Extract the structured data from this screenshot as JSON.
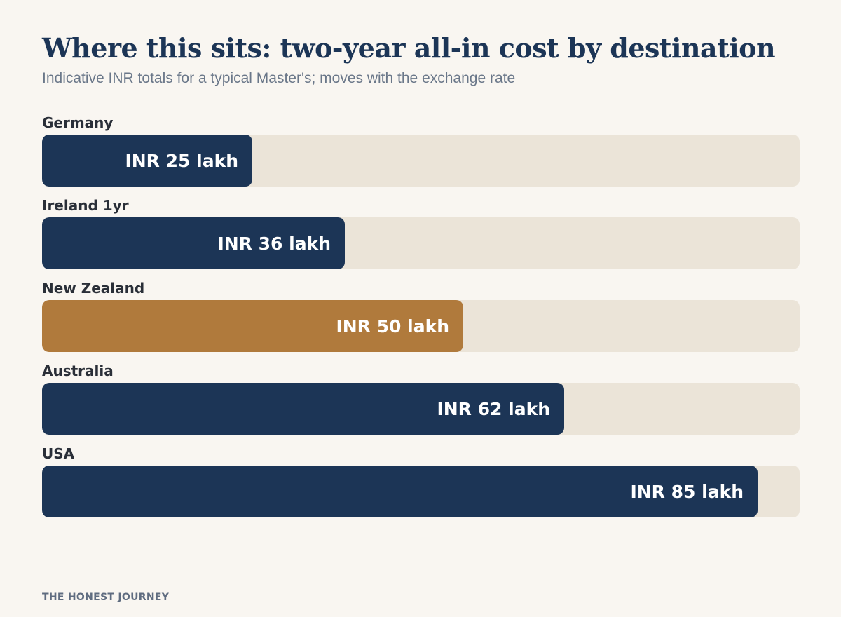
{
  "header": {
    "title": "Where this sits: two-year all-in cost by destination",
    "subtitle": "Indicative INR totals for a typical Master's; moves with the exchange rate"
  },
  "footer": {
    "brand": "THE HONEST JOURNEY"
  },
  "colors": {
    "primary": "#1c3556",
    "highlight": "#b07a3c",
    "track": "#ebe4d8",
    "background": "#f9f6f1"
  },
  "chart_data": {
    "type": "bar",
    "orientation": "horizontal",
    "title": "Where this sits: two-year all-in cost by destination",
    "subtitle": "Indicative INR totals for a typical Master's; moves with the exchange rate",
    "unit": "INR lakh",
    "xlim": [
      0,
      90
    ],
    "grid": false,
    "categories": [
      "Germany",
      "Ireland 1yr",
      "New Zealand",
      "Australia",
      "USA"
    ],
    "values": [
      25,
      36,
      50,
      62,
      85
    ],
    "value_labels": [
      "INR 25 lakh",
      "INR 36 lakh",
      "INR 50 lakh",
      "INR 62 lakh",
      "INR 85 lakh"
    ],
    "highlighted": "New Zealand"
  }
}
